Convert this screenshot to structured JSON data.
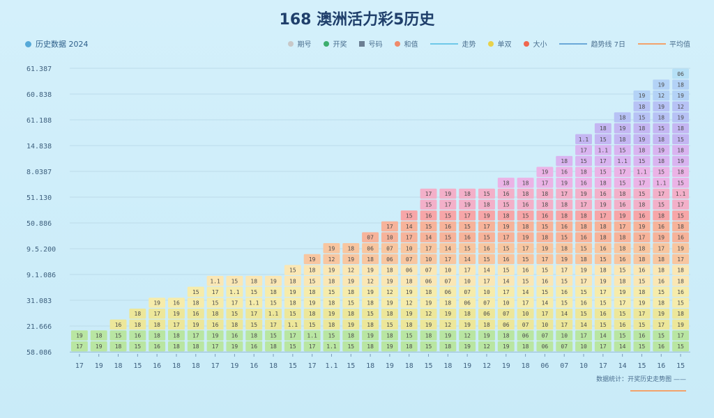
{
  "chart_data": {
    "type": "bar",
    "title": "168 澳洲活力彩5历史",
    "legend_left": "历史数据 2024",
    "legend": [
      {
        "name": "期号",
        "color": "#c8c8c8",
        "shape": "dot"
      },
      {
        "name": "开奖",
        "color": "#3dae6e",
        "shape": "dot"
      },
      {
        "name": "号码",
        "color": "#6b7f93",
        "shape": "square"
      },
      {
        "name": "和值",
        "color": "#ef8a6a",
        "shape": "text"
      },
      {
        "name": "走势",
        "color": "#6ec8e8",
        "shape": "bar"
      },
      {
        "name": "单双",
        "color": "#e8d24a",
        "shape": "dot"
      },
      {
        "name": "大小",
        "color": "#f0674f",
        "shape": "text"
      },
      {
        "name": "趋势线 7日",
        "color": "#6aa8d8",
        "shape": "line"
      },
      {
        "name": "平均值",
        "color": "#f2a26b",
        "shape": "line"
      }
    ],
    "yticks": [
      "61.387",
      "60.838",
      "61.188",
      "14.838",
      "8.0387",
      "51.130",
      "50.886",
      "9.5.200",
      "9.1.086",
      "31.083",
      "21.666",
      "58.086"
    ],
    "categories": [
      "17",
      "19",
      "18",
      "15",
      "16",
      "18",
      "18",
      "17",
      "19",
      "16",
      "18",
      "15",
      "17",
      "1.1",
      "15",
      "18",
      "19",
      "18",
      "15",
      "18",
      "19",
      "12",
      "19",
      "18",
      "06",
      "07",
      "10",
      "17",
      "14",
      "15",
      "16",
      "15"
    ],
    "values": [
      2,
      2,
      3,
      4,
      5,
      5,
      6,
      7,
      7,
      7,
      7,
      8,
      9,
      10,
      10,
      11,
      12,
      13,
      15,
      15,
      15,
      15,
      16,
      16,
      17,
      18,
      20,
      21,
      22,
      24,
      25,
      26
    ],
    "band_colors": [
      "#b9e6a2",
      "#ede79a",
      "#f6ecab",
      "#fae7b5",
      "#f8c6a0",
      "#f7b39a",
      "#f7a6a8",
      "#f3b0c9",
      "#ebb3e6",
      "#d9b4f0",
      "#c4b6f2",
      "#b7c2f5",
      "#b3d2f6",
      "#b6e0f6"
    ],
    "ylim": [
      0,
      26
    ],
    "footnote": "数据统计：开奖历史走势图 ——",
    "xlabel": "",
    "ylabel": ""
  }
}
